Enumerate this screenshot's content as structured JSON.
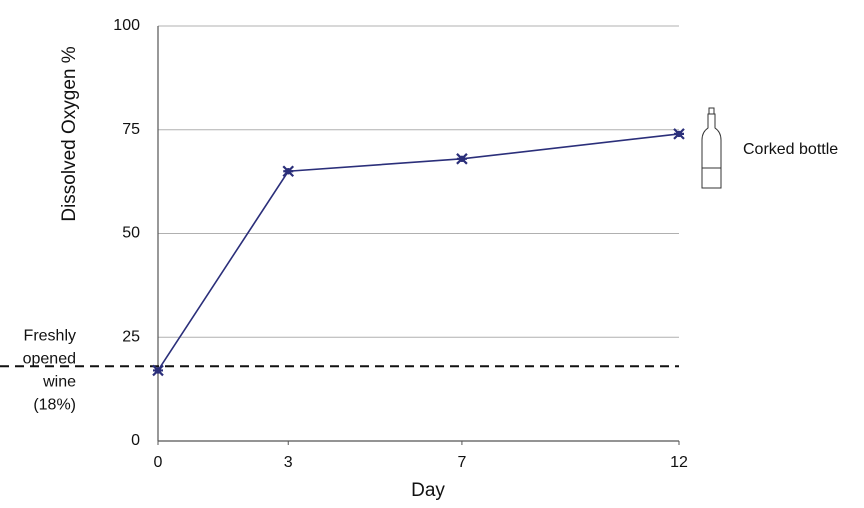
{
  "chart_data": {
    "type": "line",
    "x_label": "Day",
    "y_label": "Dissolved Oxygen %",
    "x": [
      0,
      3,
      7,
      12
    ],
    "series": [
      {
        "name": "Corked bottle",
        "color": "#2b2f7a",
        "values": [
          17,
          65,
          68,
          74
        ]
      }
    ],
    "xlim": [
      0,
      12
    ],
    "xticks": [
      0,
      3,
      7,
      12
    ],
    "ylim": [
      0,
      100
    ],
    "yticks": [
      0,
      25,
      50,
      75,
      100
    ],
    "grid": true,
    "reference_line": {
      "value": 18,
      "label": [
        "Freshly",
        "opened",
        "wine",
        "(18%)"
      ]
    }
  }
}
